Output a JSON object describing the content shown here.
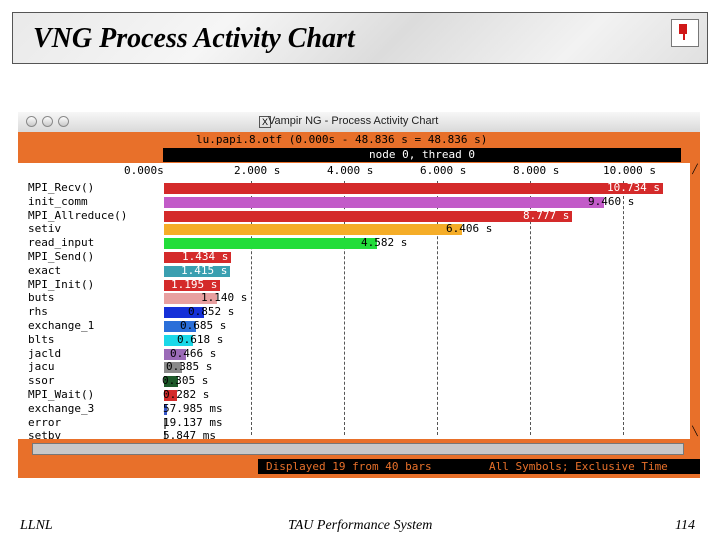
{
  "slide": {
    "title": "VNG Process Activity Chart",
    "footer_left": "LLNL",
    "footer_center": "TAU Performance System",
    "footer_right": "114"
  },
  "window": {
    "close_glyph": "X",
    "title": "Vampir NG - Process Activity Chart",
    "time_range": "lu.papi.8.otf (0.000s - 48.836 s = 48.836 s)",
    "process": "node 0, thread 0",
    "status_left": "Displayed 19 from 40 bars",
    "status_right": "All Symbols; Exclusive Time",
    "accent_color": "#e8702a"
  },
  "chart_data": {
    "type": "bar",
    "orientation": "horizontal",
    "x_unit": "s",
    "xlim": [
      0,
      11.2
    ],
    "ticks": [
      {
        "value": 0,
        "label": "0.000s"
      },
      {
        "value": 2,
        "label": "2.000 s"
      },
      {
        "value": 4,
        "label": "4.000 s"
      },
      {
        "value": 6,
        "label": "6.000 s"
      },
      {
        "value": 8,
        "label": "8.000 s"
      },
      {
        "value": 10,
        "label": "10.000 s"
      }
    ],
    "grid": true,
    "bars": [
      {
        "name": "MPI_Recv()",
        "value": 10.734,
        "label": "10.734 s",
        "color": "#d42a2a",
        "label_inside": true
      },
      {
        "name": "init_comm",
        "value": 9.46,
        "label": "9.460 s",
        "color": "#c25bc8",
        "label_inside": false
      },
      {
        "name": "MPI_Allreduce()",
        "value": 8.777,
        "label": "8.777 s",
        "color": "#d42a2a",
        "label_inside": true
      },
      {
        "name": "setiv",
        "value": 6.406,
        "label": "6.406 s",
        "color": "#f5ad28",
        "label_inside": false
      },
      {
        "name": "read_input",
        "value": 4.582,
        "label": "4.582 s",
        "color": "#22dd3a",
        "label_inside": false
      },
      {
        "name": "MPI_Send()",
        "value": 1.434,
        "label": "1.434 s",
        "color": "#d42a2a",
        "label_inside": true
      },
      {
        "name": "exact",
        "value": 1.415,
        "label": "1.415 s",
        "color": "#3a9fb0",
        "label_inside": true
      },
      {
        "name": "MPI_Init()",
        "value": 1.195,
        "label": "1.195 s",
        "color": "#d42a2a",
        "label_inside": true
      },
      {
        "name": "buts",
        "value": 1.14,
        "label": "1.140 s",
        "color": "#e8a0a0",
        "label_inside": false
      },
      {
        "name": "rhs",
        "value": 0.852,
        "label": "0.852 s",
        "color": "#1530d8",
        "label_inside": false
      },
      {
        "name": "exchange_1",
        "value": 0.685,
        "label": "0.685 s",
        "color": "#2b6fd9",
        "label_inside": false
      },
      {
        "name": "blts",
        "value": 0.618,
        "label": "0.618 s",
        "color": "#1ad8e8",
        "label_inside": false
      },
      {
        "name": "jacld",
        "value": 0.466,
        "label": "0.466 s",
        "color": "#9b6bb8",
        "label_inside": false
      },
      {
        "name": "jacu",
        "value": 0.385,
        "label": "0.385 s",
        "color": "#8a8a8a",
        "label_inside": false
      },
      {
        "name": "ssor",
        "value": 0.305,
        "label": "0.305 s",
        "color": "#1d5a2a",
        "label_inside": false
      },
      {
        "name": "MPI_Wait()",
        "value": 0.282,
        "label": "0.282 s",
        "color": "#d42a2a",
        "label_inside": false
      },
      {
        "name": "exchange_3",
        "value": 0.057985,
        "label": "57.985 ms",
        "color": "#3555c8",
        "label_inside": false
      },
      {
        "name": "error",
        "value": 0.019137,
        "label": "19.137 ms",
        "color": "#777777",
        "label_inside": false
      },
      {
        "name": "setbv",
        "value": 0.005847,
        "label": "5.847 ms",
        "color": "#777777",
        "label_inside": false
      }
    ]
  }
}
